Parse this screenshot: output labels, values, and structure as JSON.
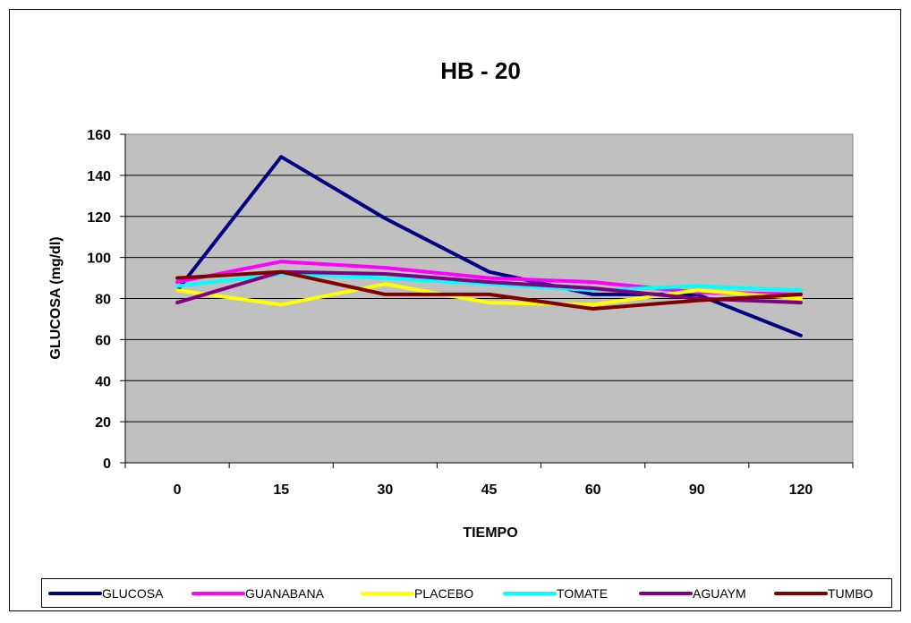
{
  "chart_data": {
    "type": "line",
    "title": "HB - 20",
    "xlabel": "TIEMPO",
    "ylabel": "GLUCOSA (mg/dl)",
    "categories": [
      "0",
      "15",
      "30",
      "45",
      "60",
      "90",
      "120"
    ],
    "ylim": [
      0,
      160
    ],
    "yticks": [
      0,
      20,
      40,
      60,
      80,
      100,
      120,
      140,
      160
    ],
    "grid": true,
    "legend_position": "bottom",
    "plot_background": "#c0c0c0",
    "series": [
      {
        "name": "GLUCOSA",
        "color": "#000080",
        "values": [
          84,
          149,
          119,
          93,
          82,
          82,
          62
        ]
      },
      {
        "name": "GUANABANA",
        "color": "#ff00ff",
        "values": [
          88,
          98,
          95,
          90,
          88,
          83,
          82
        ]
      },
      {
        "name": "PLACEBO",
        "color": "#ffff00",
        "values": [
          84,
          77,
          87,
          78,
          77,
          84,
          80
        ]
      },
      {
        "name": "TOMATE",
        "color": "#00ffff",
        "values": [
          86,
          92,
          90,
          87,
          84,
          86,
          84
        ]
      },
      {
        "name": "AGUAYM",
        "color": "#800080",
        "values": [
          78,
          93,
          92,
          88,
          85,
          80,
          78
        ]
      },
      {
        "name": "TUMBO",
        "color": "#800000",
        "values": [
          90,
          93,
          82,
          82,
          75,
          79,
          82
        ]
      }
    ]
  }
}
